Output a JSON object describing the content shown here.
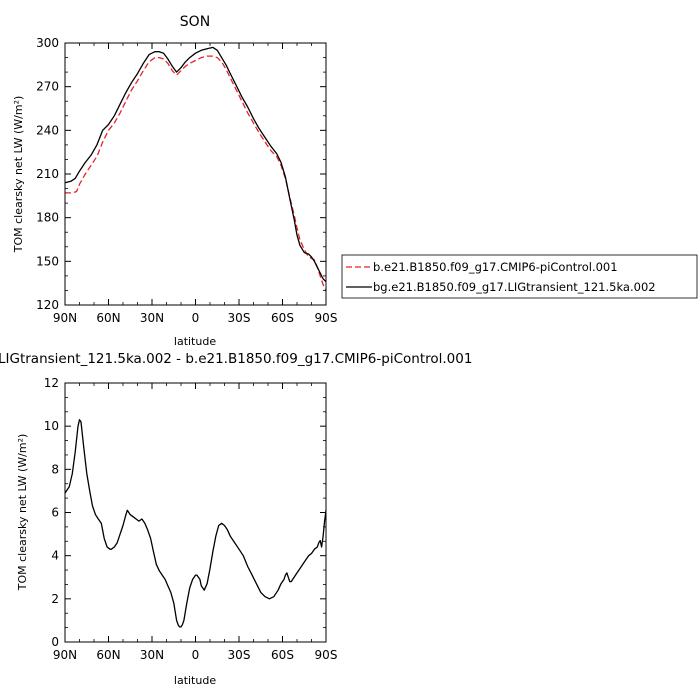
{
  "chart_data": [
    {
      "type": "line",
      "title": "SON",
      "xlabel": "latitude",
      "ylabel": "TOM clearsky net LW (W/m²)",
      "xlim": [
        90,
        -90
      ],
      "ylim": [
        120,
        300
      ],
      "x_ticks": [
        90,
        60,
        30,
        0,
        -30,
        -60,
        -90
      ],
      "x_tick_labels": [
        "90N",
        "60N",
        "30N",
        "0",
        "30S",
        "60S",
        "90S"
      ],
      "y_ticks": [
        120,
        150,
        180,
        210,
        240,
        270,
        300
      ],
      "y_tick_labels": [
        "120",
        "150",
        "180",
        "210",
        "240",
        "270",
        "300"
      ],
      "grid": false,
      "legend_position": "right",
      "series": [
        {
          "name": "b.e21.B1850.f09_g17.CMIP6-piControl.001",
          "color": "#e8222a",
          "dash": "dashed",
          "x": [
            90,
            85,
            82,
            80,
            76,
            72,
            68,
            64,
            60,
            56,
            52,
            48,
            44,
            40,
            36,
            32,
            28,
            25,
            22,
            19,
            16,
            13,
            10,
            7,
            4,
            0,
            -4,
            -8,
            -12,
            -15,
            -18,
            -21,
            -24,
            -28,
            -32,
            -36,
            -40,
            -44,
            -48,
            -52,
            -56,
            -59,
            -62,
            -65,
            -68,
            -70,
            -72,
            -75,
            -78,
            -80,
            -82,
            -84,
            -86,
            -88,
            -90
          ],
          "y": [
            197,
            197,
            198,
            203,
            210,
            216,
            222,
            232,
            240,
            245,
            252,
            260,
            268,
            274,
            281,
            287,
            290,
            290,
            289,
            286,
            281,
            278,
            281,
            284,
            286,
            288,
            290,
            291,
            291,
            290,
            287,
            282,
            276,
            268,
            260,
            252,
            245,
            238,
            232,
            226,
            222,
            216,
            207,
            194,
            182,
            173,
            165,
            158,
            153,
            152,
            151,
            146,
            140,
            134,
            130
          ]
        },
        {
          "name": "bg.e21.B1850.f09_g17.LIGtransient_121.5ka.002",
          "color": "#000000",
          "dash": "solid",
          "x": [
            90,
            86,
            83,
            80,
            76,
            72,
            68,
            64,
            60,
            56,
            52,
            48,
            44,
            40,
            36,
            32,
            28,
            25,
            22,
            19,
            16,
            13,
            10,
            7,
            4,
            0,
            -4,
            -8,
            -12,
            -15,
            -18,
            -21,
            -24,
            -28,
            -32,
            -36,
            -40,
            -44,
            -48,
            -52,
            -56,
            -59,
            -62,
            -65,
            -68,
            -70,
            -72,
            -75,
            -78,
            -80,
            -82,
            -84,
            -86,
            -88,
            -90
          ],
          "y": [
            204,
            205,
            207,
            212,
            218,
            223,
            230,
            240,
            244,
            250,
            258,
            266,
            273,
            279,
            286,
            292,
            294,
            294,
            293,
            289,
            284,
            280,
            283,
            287,
            290,
            293,
            295,
            296,
            297,
            295,
            290,
            285,
            279,
            271,
            263,
            256,
            248,
            241,
            235,
            229,
            224,
            218,
            208,
            193,
            179,
            168,
            161,
            156,
            155,
            153,
            150,
            146,
            142,
            138,
            136
          ]
        }
      ]
    },
    {
      "type": "line",
      "title": "LIGtransient_121.5ka.002 - b.e21.B1850.f09_g17.CMIP6-piControl.001",
      "xlabel": "latitude",
      "ylabel": "TOM clearsky net LW (W/m²)",
      "xlim": [
        90,
        -90
      ],
      "ylim": [
        0,
        12
      ],
      "x_ticks": [
        90,
        60,
        30,
        0,
        -30,
        -60,
        -90
      ],
      "x_tick_labels": [
        "90N",
        "60N",
        "30N",
        "0",
        "30S",
        "60S",
        "90S"
      ],
      "y_ticks": [
        0,
        2,
        4,
        6,
        8,
        10,
        12
      ],
      "y_tick_labels": [
        "0",
        "2",
        "4",
        "6",
        "8",
        "10",
        "12"
      ],
      "grid": false,
      "series": [
        {
          "color": "#000000",
          "x": [
            90,
            87,
            85,
            83,
            81,
            80,
            79,
            77,
            75,
            73,
            71,
            69,
            67,
            65,
            63,
            61,
            59,
            58,
            56,
            54,
            52,
            50,
            48,
            47,
            46,
            45,
            43,
            41,
            39,
            37,
            35,
            33,
            31,
            29,
            27,
            25,
            23,
            21,
            19,
            17,
            15,
            13,
            12,
            11,
            10,
            9,
            8,
            6,
            4,
            2,
            1,
            0,
            -1,
            -2,
            -3,
            -4,
            -5,
            -6,
            -8,
            -10,
            -12,
            -14,
            -16,
            -18,
            -20,
            -22,
            -24,
            -27,
            -30,
            -33,
            -36,
            -39,
            -42,
            -45,
            -48,
            -51,
            -54,
            -57,
            -59,
            -61,
            -62,
            -63,
            -64,
            -65,
            -66,
            -68,
            -70,
            -72,
            -74,
            -76,
            -78,
            -80,
            -82,
            -84,
            -85,
            -86,
            -87,
            -88,
            -89,
            -90
          ],
          "y": [
            6.9,
            7.2,
            7.8,
            8.8,
            10.0,
            10.3,
            10.2,
            9.0,
            7.8,
            7.0,
            6.3,
            5.9,
            5.7,
            5.5,
            4.8,
            4.4,
            4.3,
            4.3,
            4.4,
            4.6,
            5.0,
            5.4,
            5.9,
            6.1,
            6.0,
            5.9,
            5.8,
            5.7,
            5.6,
            5.7,
            5.5,
            5.2,
            4.8,
            4.2,
            3.6,
            3.3,
            3.1,
            2.9,
            2.6,
            2.3,
            1.8,
            1.0,
            0.8,
            0.7,
            0.7,
            0.8,
            1.0,
            1.8,
            2.5,
            2.9,
            3.0,
            3.1,
            3.1,
            3.0,
            2.9,
            2.6,
            2.5,
            2.4,
            2.7,
            3.4,
            4.2,
            4.9,
            5.4,
            5.5,
            5.4,
            5.2,
            4.9,
            4.6,
            4.3,
            4.0,
            3.5,
            3.1,
            2.7,
            2.3,
            2.1,
            2.0,
            2.1,
            2.4,
            2.7,
            2.9,
            3.1,
            3.2,
            3.0,
            2.8,
            2.8,
            3.0,
            3.2,
            3.4,
            3.6,
            3.8,
            4.0,
            4.1,
            4.3,
            4.4,
            4.6,
            4.7,
            4.4,
            4.9,
            5.6,
            6.1
          ]
        }
      ]
    }
  ]
}
